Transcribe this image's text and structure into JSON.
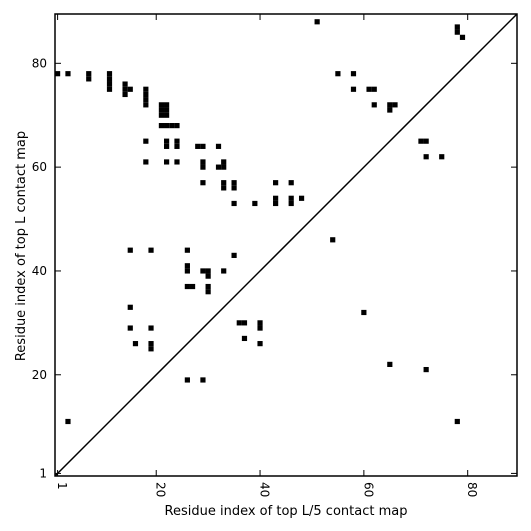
{
  "chart_data": {
    "type": "scatter",
    "title": "",
    "xlabel": "Residue index of top L/5 contact map",
    "ylabel": "Residue index of top L contact map",
    "xlim": [
      0.5,
      89.5
    ],
    "ylim": [
      0.5,
      89.5
    ],
    "xticks": [
      1,
      20,
      40,
      60,
      80
    ],
    "xtick_labels": [
      "1",
      "20",
      "40",
      "60",
      "80"
    ],
    "yticks": [
      1,
      20,
      40,
      60,
      80
    ],
    "ytick_labels": [
      "1",
      "20",
      "40",
      "60",
      "80"
    ],
    "diagonal": {
      "from": [
        0.5,
        0.5
      ],
      "to": [
        89.5,
        89.5
      ],
      "color": "#000000"
    },
    "marker": {
      "shape": "square",
      "color": "#000000"
    },
    "grid": false,
    "series": [
      {
        "points": [
          [
            1,
            78
          ],
          [
            3,
            78
          ],
          [
            7,
            78
          ],
          [
            7,
            77
          ],
          [
            11,
            78
          ],
          [
            11,
            77
          ],
          [
            11,
            76
          ],
          [
            11,
            75
          ],
          [
            14,
            76
          ],
          [
            14,
            75
          ],
          [
            14,
            74
          ],
          [
            15,
            75
          ],
          [
            18,
            75
          ],
          [
            18,
            74
          ],
          [
            18,
            73
          ],
          [
            18,
            72
          ],
          [
            21,
            72
          ],
          [
            22,
            72
          ],
          [
            21,
            71
          ],
          [
            22,
            71
          ],
          [
            21,
            70
          ],
          [
            22,
            70
          ],
          [
            21,
            68
          ],
          [
            22,
            68
          ],
          [
            23,
            68
          ],
          [
            24,
            68
          ],
          [
            18,
            65
          ],
          [
            22,
            65
          ],
          [
            22,
            64
          ],
          [
            24,
            65
          ],
          [
            24,
            64
          ],
          [
            28,
            64
          ],
          [
            29,
            64
          ],
          [
            32,
            64
          ],
          [
            18,
            61
          ],
          [
            22,
            61
          ],
          [
            24,
            61
          ],
          [
            29,
            61
          ],
          [
            29,
            60
          ],
          [
            32,
            60
          ],
          [
            33,
            61
          ],
          [
            33,
            60
          ],
          [
            29,
            57
          ],
          [
            33,
            57
          ],
          [
            33,
            56
          ],
          [
            35,
            57
          ],
          [
            35,
            56
          ],
          [
            35,
            53
          ],
          [
            39,
            53
          ],
          [
            43,
            57
          ],
          [
            43,
            54
          ],
          [
            43,
            53
          ],
          [
            46,
            57
          ],
          [
            46,
            54
          ],
          [
            46,
            53
          ],
          [
            48,
            54
          ],
          [
            51,
            88
          ],
          [
            55,
            78
          ],
          [
            58,
            78
          ],
          [
            58,
            75
          ],
          [
            61,
            75
          ],
          [
            62,
            75
          ],
          [
            62,
            72
          ],
          [
            65,
            72
          ],
          [
            66,
            72
          ],
          [
            65,
            71
          ],
          [
            78,
            87
          ],
          [
            78,
            86
          ],
          [
            79,
            85
          ],
          [
            71,
            65
          ],
          [
            72,
            65
          ],
          [
            72,
            62
          ],
          [
            75,
            62
          ],
          [
            15,
            44
          ],
          [
            19,
            44
          ],
          [
            26,
            44
          ],
          [
            26,
            41
          ],
          [
            26,
            40
          ],
          [
            26,
            37
          ],
          [
            27,
            37
          ],
          [
            29,
            40
          ],
          [
            30,
            40
          ],
          [
            30,
            39
          ],
          [
            30,
            37
          ],
          [
            30,
            36
          ],
          [
            33,
            40
          ],
          [
            35,
            43
          ],
          [
            54,
            46
          ],
          [
            15,
            33
          ],
          [
            15,
            29
          ],
          [
            19,
            29
          ],
          [
            16,
            26
          ],
          [
            19,
            26
          ],
          [
            19,
            25
          ],
          [
            36,
            30
          ],
          [
            37,
            30
          ],
          [
            40,
            30
          ],
          [
            40,
            29
          ],
          [
            37,
            27
          ],
          [
            40,
            26
          ],
          [
            60,
            32
          ],
          [
            65,
            22
          ],
          [
            72,
            21
          ],
          [
            26,
            19
          ],
          [
            29,
            19
          ],
          [
            3,
            11
          ],
          [
            78,
            11
          ]
        ]
      }
    ]
  }
}
